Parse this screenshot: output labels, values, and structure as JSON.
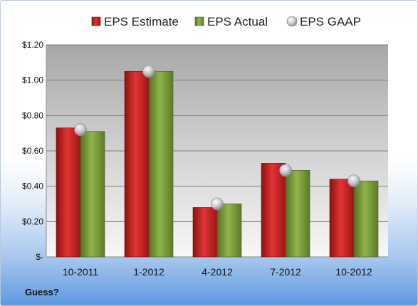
{
  "chart_data": {
    "type": "bar",
    "title": "",
    "xlabel": "",
    "ylabel": "",
    "categories": [
      "10-2011",
      "1-2012",
      "4-2012",
      "7-2012",
      "10-2012"
    ],
    "series": [
      {
        "name": "EPS Estimate",
        "kind": "bar",
        "color": "#d42626",
        "values": [
          0.73,
          1.05,
          0.28,
          0.53,
          0.44
        ]
      },
      {
        "name": "EPS Actual",
        "kind": "bar",
        "color": "#7fa33d",
        "values": [
          0.71,
          1.05,
          0.3,
          0.49,
          0.43
        ]
      },
      {
        "name": "EPS GAAP",
        "kind": "marker",
        "color": "#b8bcc2",
        "values": [
          0.72,
          1.05,
          0.3,
          0.49,
          0.43
        ]
      }
    ],
    "ylim": [
      0,
      1.2
    ],
    "yticks": [
      0,
      0.2,
      0.4,
      0.6,
      0.8,
      1.0,
      1.2
    ],
    "ytick_labels": [
      "$-",
      "$0.20",
      "$0.40",
      "$0.60",
      "$0.80",
      "$1.00",
      "$1.20"
    ],
    "grid": true,
    "legend_position": "top"
  },
  "footnote": "Guess?"
}
